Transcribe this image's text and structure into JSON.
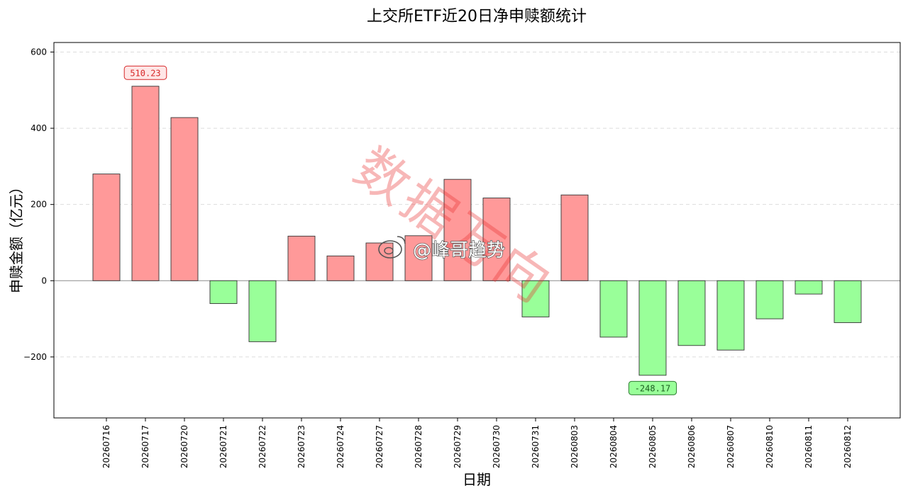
{
  "chart_data": {
    "type": "bar",
    "title": "上交所ETF近20日净申赎额统计",
    "xlabel": "日期",
    "ylabel": "申赎金额（亿元）",
    "ylim": [
      -360,
      625
    ],
    "yticks": [
      -200,
      0,
      200,
      400,
      600
    ],
    "grid": "horizontal dashed",
    "categories": [
      "20260716",
      "20260717",
      "20260720",
      "20260721",
      "20260722",
      "20260723",
      "20260724",
      "20260727",
      "20260728",
      "20260729",
      "20260730",
      "20260731",
      "20260803",
      "20260804",
      "20260805",
      "20260806",
      "20260807",
      "20260810",
      "20260811",
      "20260812"
    ],
    "values": [
      280,
      510.23,
      428,
      -60,
      -160,
      117,
      65,
      99,
      118,
      266,
      217,
      -95,
      225,
      -148,
      -248.17,
      -170,
      -182,
      -100,
      -35,
      -110
    ],
    "annotations": [
      {
        "category": "20260717",
        "text": "510.23",
        "kind": "max"
      },
      {
        "category": "20260805",
        "text": "-248.17",
        "kind": "min"
      }
    ],
    "colors": {
      "positive_fill": "#ff9999",
      "negative_fill": "#99ff99",
      "bar_edge": "#333333",
      "max_label": "#d62728",
      "min_label": "#2ca02c",
      "max_box": "#ffe6e6",
      "min_box": "#99ff99"
    }
  },
  "watermark": {
    "text": "数据万向"
  },
  "weibo_mark": {
    "text": "@峰哥趋势",
    "icon": "weibo-icon"
  }
}
